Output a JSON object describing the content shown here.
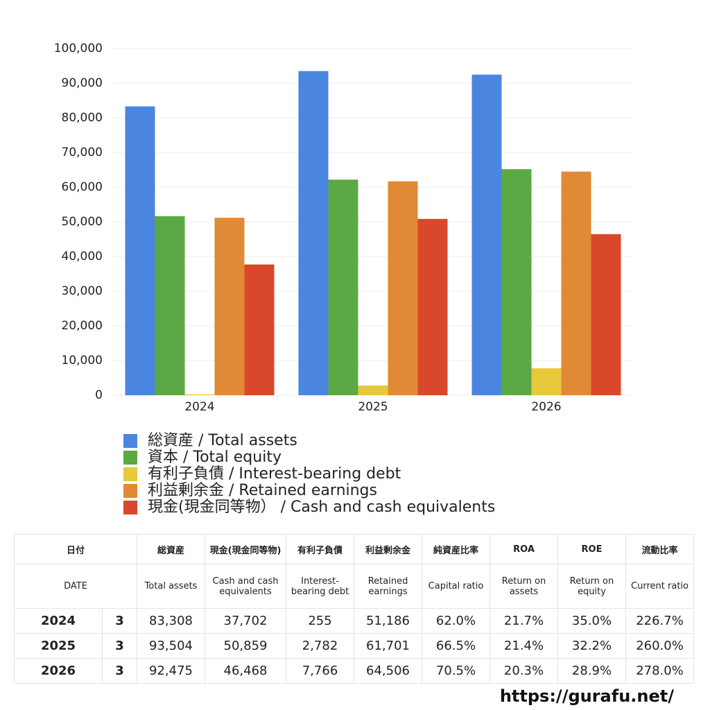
{
  "chart_data": {
    "type": "bar",
    "categories": [
      "2024",
      "2025",
      "2026"
    ],
    "series": [
      {
        "name": "総資産 / Total assets",
        "color": "#4a86e0",
        "values": [
          83308,
          93504,
          92475
        ]
      },
      {
        "name": "資本 / Total equity",
        "color": "#5aa945",
        "values": [
          51651,
          62180,
          65195
        ]
      },
      {
        "name": "有利子負債 / Interest-bearing debt",
        "color": "#e8c93c",
        "values": [
          255,
          2782,
          7766
        ]
      },
      {
        "name": "利益剰余金 / Retained earnings",
        "color": "#e08a35",
        "values": [
          51186,
          61701,
          64506
        ]
      },
      {
        "name": "現金(現金同等物） /  Cash and cash equivalents",
        "color": "#d9482a",
        "values": [
          37702,
          50859,
          46468
        ]
      }
    ],
    "ylim": [
      0,
      100000
    ],
    "yticks": [
      0,
      {
        "value": 10000,
        "label": "10,000"
      },
      {
        "value": 20000,
        "label": "20,000"
      },
      {
        "value": 30000,
        "label": "30,000"
      },
      {
        "value": 40000,
        "label": "40,000"
      },
      {
        "value": 50000,
        "label": "50,000"
      },
      {
        "value": 60000,
        "label": "60,000"
      },
      {
        "value": 70000,
        "label": "70,000"
      },
      {
        "value": 80000,
        "label": "80,000"
      },
      {
        "value": 90000,
        "label": "90,000"
      },
      {
        "value": 100000,
        "label": "100,000"
      }
    ],
    "grid": true
  },
  "table": {
    "columns": [
      {
        "jp": "日付",
        "en": "DATE"
      },
      {
        "jp": "総資産",
        "en": "Total assets"
      },
      {
        "jp": "現金(現金同等物)",
        "en": "Cash and cash equivalents"
      },
      {
        "jp": "有利子負債",
        "en": "Interest-bearing debt"
      },
      {
        "jp": "利益剰余金",
        "en": "Retained earnings"
      },
      {
        "jp": "純資産比率",
        "en": "Capital ratio"
      },
      {
        "jp": "ROA",
        "en": "Return on assets"
      },
      {
        "jp": "ROE",
        "en": "Return on equity"
      },
      {
        "jp": "流動比率",
        "en": "Current ratio"
      }
    ],
    "rows": [
      [
        "2024",
        "3",
        "83,308",
        "37,702",
        "255",
        "51,186",
        "62.0%",
        "21.7%",
        "35.0%",
        "226.7%"
      ],
      [
        "2025",
        "3",
        "93,504",
        "50,859",
        "2,782",
        "61,701",
        "66.5%",
        "21.4%",
        "32.2%",
        "260.0%"
      ],
      [
        "2026",
        "3",
        "92,475",
        "46,468",
        "7,766",
        "64,506",
        "70.5%",
        "20.3%",
        "28.9%",
        "278.0%"
      ]
    ]
  },
  "footer": "https://gurafu.net/"
}
